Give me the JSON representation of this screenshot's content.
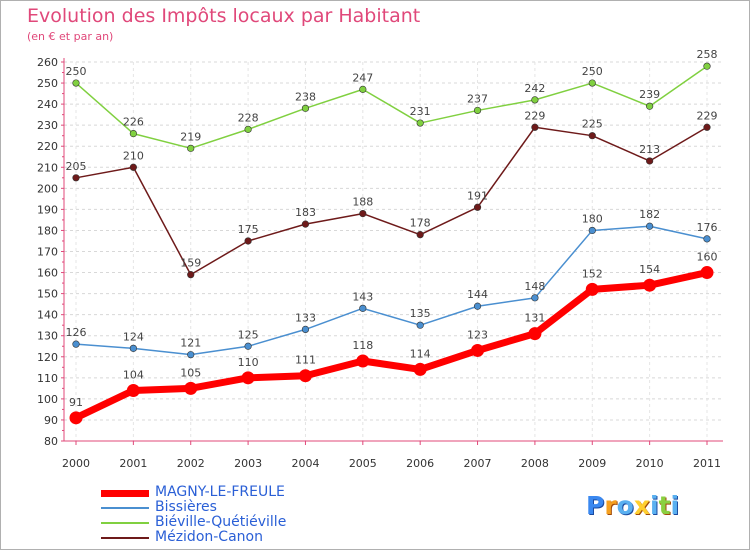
{
  "title": "Evolution des Impôts locaux par Habitant",
  "subtitle": "(en € et par an)",
  "logo": {
    "text": "Proxiti"
  },
  "chart_data": {
    "type": "line",
    "title": "Evolution des Impôts locaux par Habitant",
    "subtitle": "(en € et par an)",
    "xlabel": "",
    "ylabel": "",
    "categories": [
      "2000",
      "2001",
      "2002",
      "2003",
      "2004",
      "2005",
      "2006",
      "2007",
      "2008",
      "2009",
      "2010",
      "2011"
    ],
    "ylim": [
      80,
      260
    ],
    "yticks": [
      80,
      90,
      100,
      110,
      120,
      130,
      140,
      150,
      160,
      170,
      180,
      190,
      200,
      210,
      220,
      230,
      240,
      250,
      260
    ],
    "grid": "horizontal dashed",
    "legend_position": "bottom-left",
    "series": [
      {
        "name": "MAGNY-LE-FREULE",
        "color": "#ff0000",
        "values": [
          91,
          104,
          105,
          110,
          111,
          118,
          114,
          123,
          131,
          152,
          154,
          160
        ]
      },
      {
        "name": "Bissières",
        "color": "#4a8fd0",
        "values": [
          126,
          124,
          121,
          125,
          133,
          143,
          135,
          144,
          148,
          180,
          182,
          176
        ]
      },
      {
        "name": "Biéville-Quétiéville",
        "color": "#80d040",
        "values": [
          250,
          226,
          219,
          228,
          238,
          247,
          231,
          237,
          242,
          250,
          239,
          258
        ]
      },
      {
        "name": "Mézidon-Canon",
        "color": "#6e1a1a",
        "values": [
          205,
          210,
          159,
          175,
          183,
          188,
          178,
          191,
          229,
          225,
          213,
          229
        ]
      }
    ]
  }
}
